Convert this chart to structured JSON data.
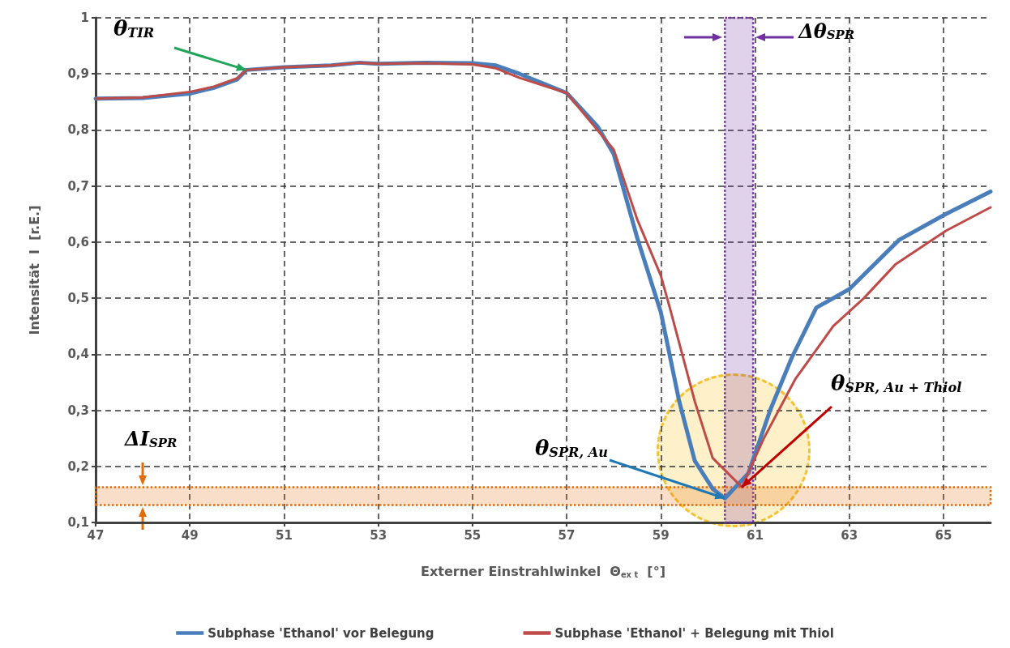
{
  "chart_data": {
    "type": "line",
    "xlabel": "Externer Einstrahlwinkel  Θ$_{ex t}$  [°]",
    "ylabel": "Intensität  I  [r.E.]",
    "xlim": [
      47,
      66
    ],
    "xticks": [
      47,
      49,
      51,
      53,
      55,
      57,
      59,
      61,
      63,
      65
    ],
    "ylim": [
      0.1,
      1
    ],
    "yticks": [
      {
        "value": 0.1,
        "label": "0,1"
      },
      {
        "value": 0.2,
        "label": "0,2"
      },
      {
        "value": 0.3,
        "label": "0,3"
      },
      {
        "value": 0.4,
        "label": "0,4"
      },
      {
        "value": 0.5,
        "label": "0,5"
      },
      {
        "value": 0.6,
        "label": "0,6"
      },
      {
        "value": 0.7,
        "label": "0,7"
      },
      {
        "value": 0.8,
        "label": "0,8"
      },
      {
        "value": 0.9,
        "label": "0,9"
      },
      {
        "value": 1,
        "label": "1"
      }
    ],
    "grid": true,
    "legend": "bottom",
    "marker": "none",
    "line_style": "solid",
    "series": [
      {
        "name": "Subphase 'Ethanol' vor Belegung",
        "color": "#4a7ebb",
        "x": [
          47,
          48,
          49,
          49.5,
          50,
          50.2,
          51,
          52,
          52.6,
          53,
          54,
          55,
          55.5,
          56,
          57,
          57.65,
          58,
          58.5,
          59,
          59.39,
          59.72,
          60.1,
          60.36,
          60.86,
          61.32,
          61.78,
          62.3,
          63,
          64.06,
          65.05,
          66
        ],
        "values": [
          0.856,
          0.857,
          0.865,
          0.875,
          0.89,
          0.907,
          0.912,
          0.915,
          0.92,
          0.918,
          0.92,
          0.919,
          0.915,
          0.9,
          0.866,
          0.807,
          0.757,
          0.607,
          0.475,
          0.316,
          0.21,
          0.16,
          0.143,
          0.188,
          0.3,
          0.394,
          0.483,
          0.516,
          0.604,
          0.65,
          0.69
        ]
      },
      {
        "name": "Subphase 'Ethanol' + Belegung mit Thiol",
        "color": "#be4b48",
        "x": [
          47,
          48,
          49,
          49.5,
          50,
          50.2,
          51,
          52,
          52.6,
          53,
          54,
          55,
          55.5,
          56,
          57,
          58,
          58.5,
          59,
          59.19,
          59.72,
          60.1,
          60.72,
          61.18,
          61.85,
          62.66,
          63.31,
          63.99,
          65.05,
          66
        ],
        "values": [
          0.856,
          0.858,
          0.868,
          0.877,
          0.892,
          0.907,
          0.912,
          0.915,
          0.92,
          0.918,
          0.919,
          0.917,
          0.91,
          0.893,
          0.866,
          0.765,
          0.64,
          0.54,
          0.483,
          0.316,
          0.215,
          0.163,
          0.249,
          0.355,
          0.45,
          0.5,
          0.561,
          0.62,
          0.662
        ]
      }
    ],
    "bands": [
      {
        "axis": "x",
        "from": 60.36,
        "to": 60.96,
        "label": "Δθ$_{SPR}$",
        "color": "#7030a0"
      },
      {
        "axis": "y",
        "from": 0.131,
        "to": 0.163,
        "label": "ΔI$_{SPR}$",
        "color": "#e36c0a"
      }
    ],
    "annotations": [
      {
        "text": "θ$_{TIR}$",
        "x": 50.2,
        "y": 0.907
      },
      {
        "text": "θ$_{SPR, Au}$",
        "x": 60.36,
        "y": 0.143
      },
      {
        "text": "θ$_{SPR, Au + Thiol}$",
        "x": 60.72,
        "y": 0.163
      }
    ]
  }
}
